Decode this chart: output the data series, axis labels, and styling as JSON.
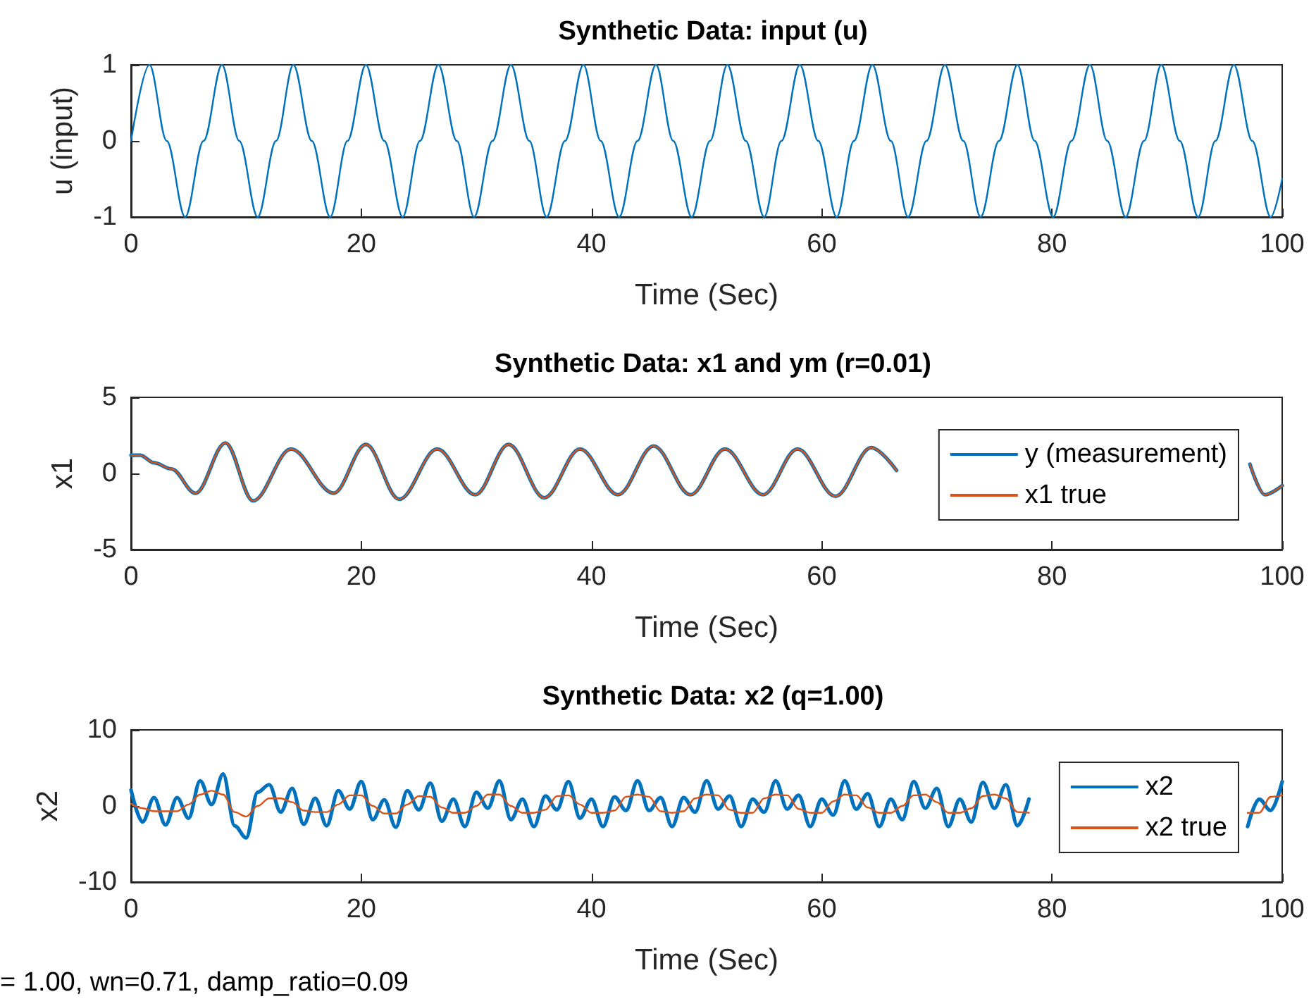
{
  "chart_data": [
    {
      "type": "line",
      "title": "Synthetic Data: input (u)",
      "xlabel": "Time (Sec)",
      "ylabel": "u (input)",
      "xlim": [
        0,
        100
      ],
      "xticks": [
        0,
        20,
        40,
        60,
        80,
        100
      ],
      "ylim": [
        -1,
        1
      ],
      "yticks": [
        -1,
        0,
        1
      ],
      "grid": false,
      "legend": false,
      "x": [
        0,
        1.6,
        3.1,
        4.7,
        6.3,
        7.9,
        9.4,
        11.0,
        12.6,
        14.1,
        15.7,
        17.3,
        18.8,
        20.4,
        22.0,
        23.6,
        25.1,
        26.7,
        28.3,
        29.8,
        31.4,
        33.0,
        34.6,
        36.1,
        37.7,
        39.3,
        40.8,
        42.4,
        44.0,
        45.6,
        47.1,
        48.7,
        50.3,
        51.8,
        53.4,
        55.0,
        56.5,
        58.1,
        59.7,
        61.3,
        62.8,
        64.4,
        66.0,
        67.5,
        69.1,
        70.7,
        72.3,
        73.8,
        75.4,
        77.0,
        78.5,
        80.1,
        81.7,
        83.3,
        84.8,
        86.4,
        88.0,
        89.5,
        91.1,
        92.7,
        94.2,
        95.8,
        97.4,
        99.0,
        100
      ],
      "series": [
        {
          "color": "#0072bd",
          "values": [
            0,
            1,
            0,
            -1,
            0,
            1,
            0,
            -1,
            0,
            1,
            0,
            -1,
            0,
            1,
            0,
            -1,
            0,
            1,
            0,
            -1,
            0,
            1,
            0,
            -1,
            0,
            1,
            0,
            -1,
            0,
            1,
            0,
            -1,
            0,
            1,
            0,
            -1,
            0,
            1,
            0,
            -1,
            0,
            1,
            0,
            -1,
            0,
            1,
            0,
            -1,
            0,
            1,
            0,
            -1,
            0,
            1,
            0,
            -1,
            0,
            1,
            0,
            -1,
            0,
            1,
            0,
            -1,
            -0.5
          ]
        }
      ]
    },
    {
      "type": "line",
      "title": "Synthetic Data: x1 and ym (r=0.01)",
      "xlabel": "Time (Sec)",
      "ylabel": "x1",
      "xlim": [
        0,
        100
      ],
      "xticks": [
        0,
        20,
        40,
        60,
        80,
        100
      ],
      "ylim": [
        -5,
        5
      ],
      "yticks": [
        -5,
        0,
        5
      ],
      "grid": false,
      "legend": "right",
      "x": [
        0,
        0.8,
        2,
        3.5,
        5.6,
        8.2,
        10.6,
        13.9,
        17.6,
        20.4,
        23.3,
        26.6,
        29.9,
        32.8,
        35.9,
        39.0,
        42.3,
        45.4,
        48.6,
        51.6,
        54.9,
        57.9,
        61.2,
        64.3,
        66.5,
        80,
        97.2,
        98.5,
        100
      ],
      "series": [
        {
          "name": "y (measurement)",
          "color": "#0072bd",
          "values": [
            1.2,
            1.2,
            0.7,
            0.3,
            -1.3,
            2.0,
            -1.8,
            1.6,
            -1.3,
            1.9,
            -1.7,
            1.6,
            -1.4,
            1.9,
            -1.6,
            1.6,
            -1.4,
            1.8,
            -1.4,
            1.6,
            -1.4,
            1.6,
            -1.5,
            1.7,
            0.2,
            null,
            0.6,
            -1.4,
            -0.8
          ]
        },
        {
          "name": "x1 true",
          "color": "#d95319",
          "values": [
            1.2,
            1.2,
            0.7,
            0.3,
            -1.3,
            2.0,
            -1.8,
            1.6,
            -1.3,
            1.9,
            -1.7,
            1.6,
            -1.4,
            1.9,
            -1.6,
            1.6,
            -1.4,
            1.8,
            -1.4,
            1.6,
            -1.4,
            1.6,
            -1.5,
            1.7,
            0.2,
            null,
            0.6,
            -1.4,
            -0.8
          ]
        }
      ]
    },
    {
      "type": "line",
      "title": "Synthetic Data: x2 (q=1.00)",
      "xlabel": "Time (Sec)",
      "ylabel": "x2",
      "xlim": [
        0,
        100
      ],
      "xticks": [
        0,
        20,
        40,
        60,
        80,
        100
      ],
      "ylim": [
        -10,
        10
      ],
      "yticks": [
        -10,
        0,
        10
      ],
      "grid": false,
      "legend": "right",
      "annotations": [
        "= 1.00, wn=0.71, damp_ratio=0.09"
      ],
      "x": [
        0,
        1,
        2,
        3,
        4,
        5,
        6,
        7,
        8,
        9,
        10,
        11,
        12,
        13,
        14,
        15,
        16,
        17,
        18,
        19,
        20,
        21,
        22,
        23,
        24,
        25,
        26,
        27,
        28,
        29,
        30,
        31,
        32,
        33,
        34,
        35,
        36,
        37,
        38,
        39,
        40,
        41,
        42,
        43,
        44,
        45,
        46,
        47,
        48,
        49,
        50,
        51,
        52,
        53,
        54,
        55,
        56,
        57,
        58,
        59,
        60,
        61,
        62,
        63,
        64,
        65,
        66,
        67,
        68,
        69,
        70,
        71,
        72,
        73,
        74,
        75,
        76,
        77,
        78,
        88,
        97,
        98,
        99,
        100
      ],
      "series": [
        {
          "name": "x2",
          "color": "#0072bd",
          "values": [
            2.1,
            -2.1,
            1.1,
            -2.5,
            1.1,
            -1.6,
            3.3,
            0.2,
            4.2,
            -2.6,
            -4.2,
            1.8,
            2.8,
            -0.8,
            2.3,
            -2.4,
            1.0,
            -2.6,
            2.0,
            -0.4,
            3.2,
            -1.8,
            0.8,
            -2.8,
            2.0,
            -0.5,
            3.0,
            -2.0,
            0.9,
            -2.7,
            1.8,
            -0.3,
            3.3,
            -1.8,
            0.9,
            -2.7,
            1.3,
            -0.5,
            3.2,
            -1.6,
            0.9,
            -2.7,
            1.2,
            -0.6,
            3.3,
            -0.6,
            1.1,
            -2.7,
            1.1,
            -0.8,
            3.3,
            -0.4,
            1.3,
            -2.7,
            0.9,
            -0.8,
            3.3,
            -0.4,
            1.4,
            -2.7,
            0.9,
            -1.2,
            3.3,
            -0.4,
            1.6,
            -2.7,
            0.9,
            -1.8,
            3.2,
            -0.3,
            2.3,
            -2.7,
            0.9,
            -2.1,
            3.1,
            -0.3,
            2.8,
            -2.6,
            0.9,
            null,
            -2.7,
            0.9,
            -0.6,
            3.2
          ]
        },
        {
          "name": "x2 true",
          "color": "#d95319",
          "values": [
            0.3,
            -0.3,
            -0.7,
            -0.7,
            -0.7,
            0.2,
            1.5,
            2.0,
            1.5,
            -0.8,
            -1.4,
            0.0,
            1.0,
            1.0,
            0.5,
            -0.6,
            -0.8,
            -0.8,
            0.2,
            1.4,
            1.4,
            0.0,
            -1.0,
            -1.0,
            0.2,
            1.3,
            1.2,
            -0.2,
            -0.9,
            -0.9,
            0.0,
            1.5,
            1.5,
            0.0,
            -0.9,
            -0.9,
            -0.5,
            1.3,
            1.4,
            0.2,
            -0.9,
            -0.9,
            -0.6,
            1.2,
            1.5,
            1.2,
            -0.7,
            -0.9,
            -0.7,
            1.0,
            1.5,
            1.4,
            -0.5,
            -0.9,
            -0.9,
            1.0,
            1.5,
            1.4,
            -0.4,
            -0.9,
            -0.9,
            0.6,
            1.5,
            1.4,
            -0.2,
            -0.9,
            -0.9,
            0.0,
            1.4,
            1.5,
            0.5,
            -0.9,
            -0.9,
            -0.3,
            1.3,
            1.5,
            1.0,
            -0.8,
            -0.9,
            null,
            -0.9,
            -0.9,
            1.2,
            1.4
          ]
        }
      ]
    }
  ]
}
